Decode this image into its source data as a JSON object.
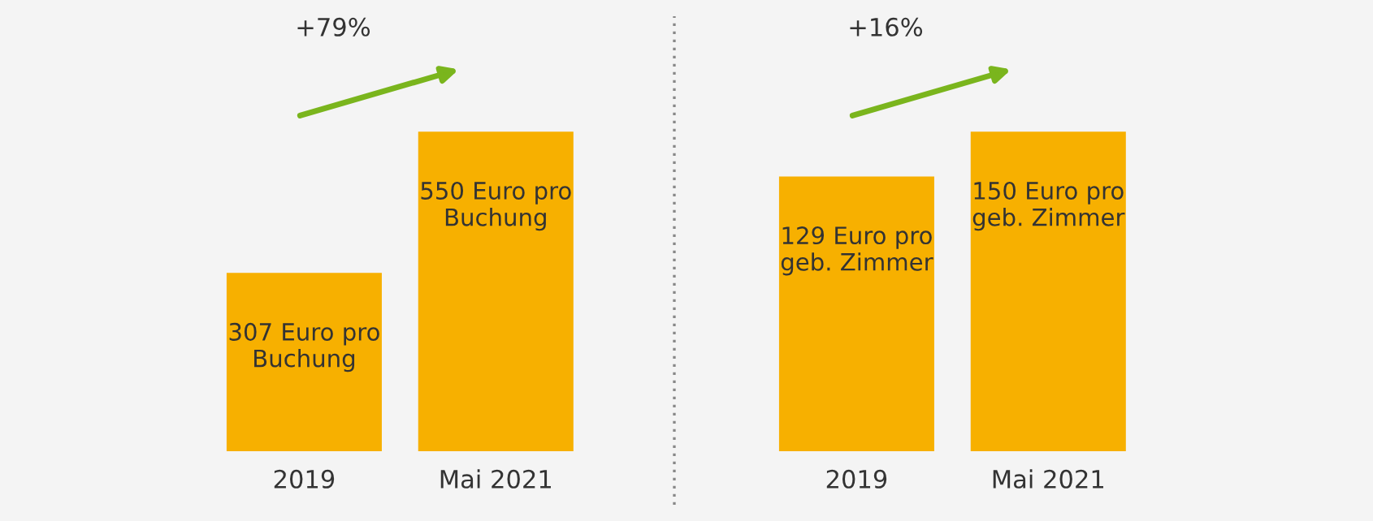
{
  "chart_data": [
    {
      "type": "bar",
      "categories": [
        "2019",
        "Mai 2021"
      ],
      "values": [
        307,
        550
      ],
      "color": "#f7b000",
      "value_labels": [
        "307 Euro pro\nBuchung",
        "550 Euro pro\nBuchung"
      ],
      "annotations": [
        "+79%"
      ]
    },
    {
      "type": "bar",
      "categories": [
        "2019",
        "Mai 2021"
      ],
      "values": [
        129,
        150
      ],
      "color": "#f7b000",
      "value_labels": [
        "129 Euro pro\ngeb. Zimmer",
        "150 Euro pro\ngeb. Zimmer"
      ],
      "annotations": [
        "+16%"
      ]
    }
  ]
}
